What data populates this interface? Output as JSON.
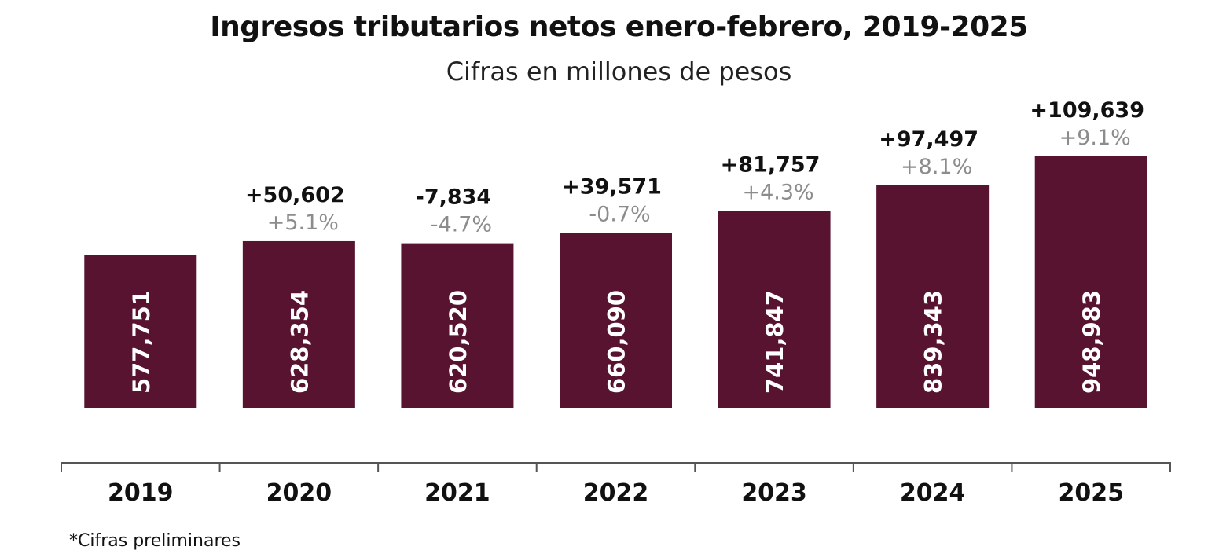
{
  "title": "Ingresos tributarios netos enero-febrero, 2019-2025",
  "subtitle": "Cifras en millones de pesos",
  "footnote": "*Cifras preliminares",
  "colors": {
    "bar": "#57132f",
    "bar_label": "#ffffff",
    "diff": "#111111",
    "pct": "#8c8c8c",
    "axis": "#555555"
  },
  "chart_data": {
    "type": "bar",
    "categories": [
      "2019",
      "2020",
      "2021",
      "2022",
      "2023",
      "2024",
      "2025"
    ],
    "values": [
      577751,
      628354,
      620520,
      660090,
      741847,
      839343,
      948983
    ],
    "value_labels": [
      "577,751",
      "628,354",
      "620,520",
      "660,090",
      "741,847",
      "839,343",
      "948,983"
    ],
    "diff_labels": [
      "",
      "+50,602",
      "-7,834",
      "+39,571",
      "+81,757",
      "+97,497",
      "+109,639"
    ],
    "pct_labels": [
      "",
      "+5.1%",
      "-4.7%",
      "-0.7%",
      "+4.3%",
      "+8.1%",
      "+9.1%"
    ],
    "grid": false,
    "legend": "none"
  }
}
